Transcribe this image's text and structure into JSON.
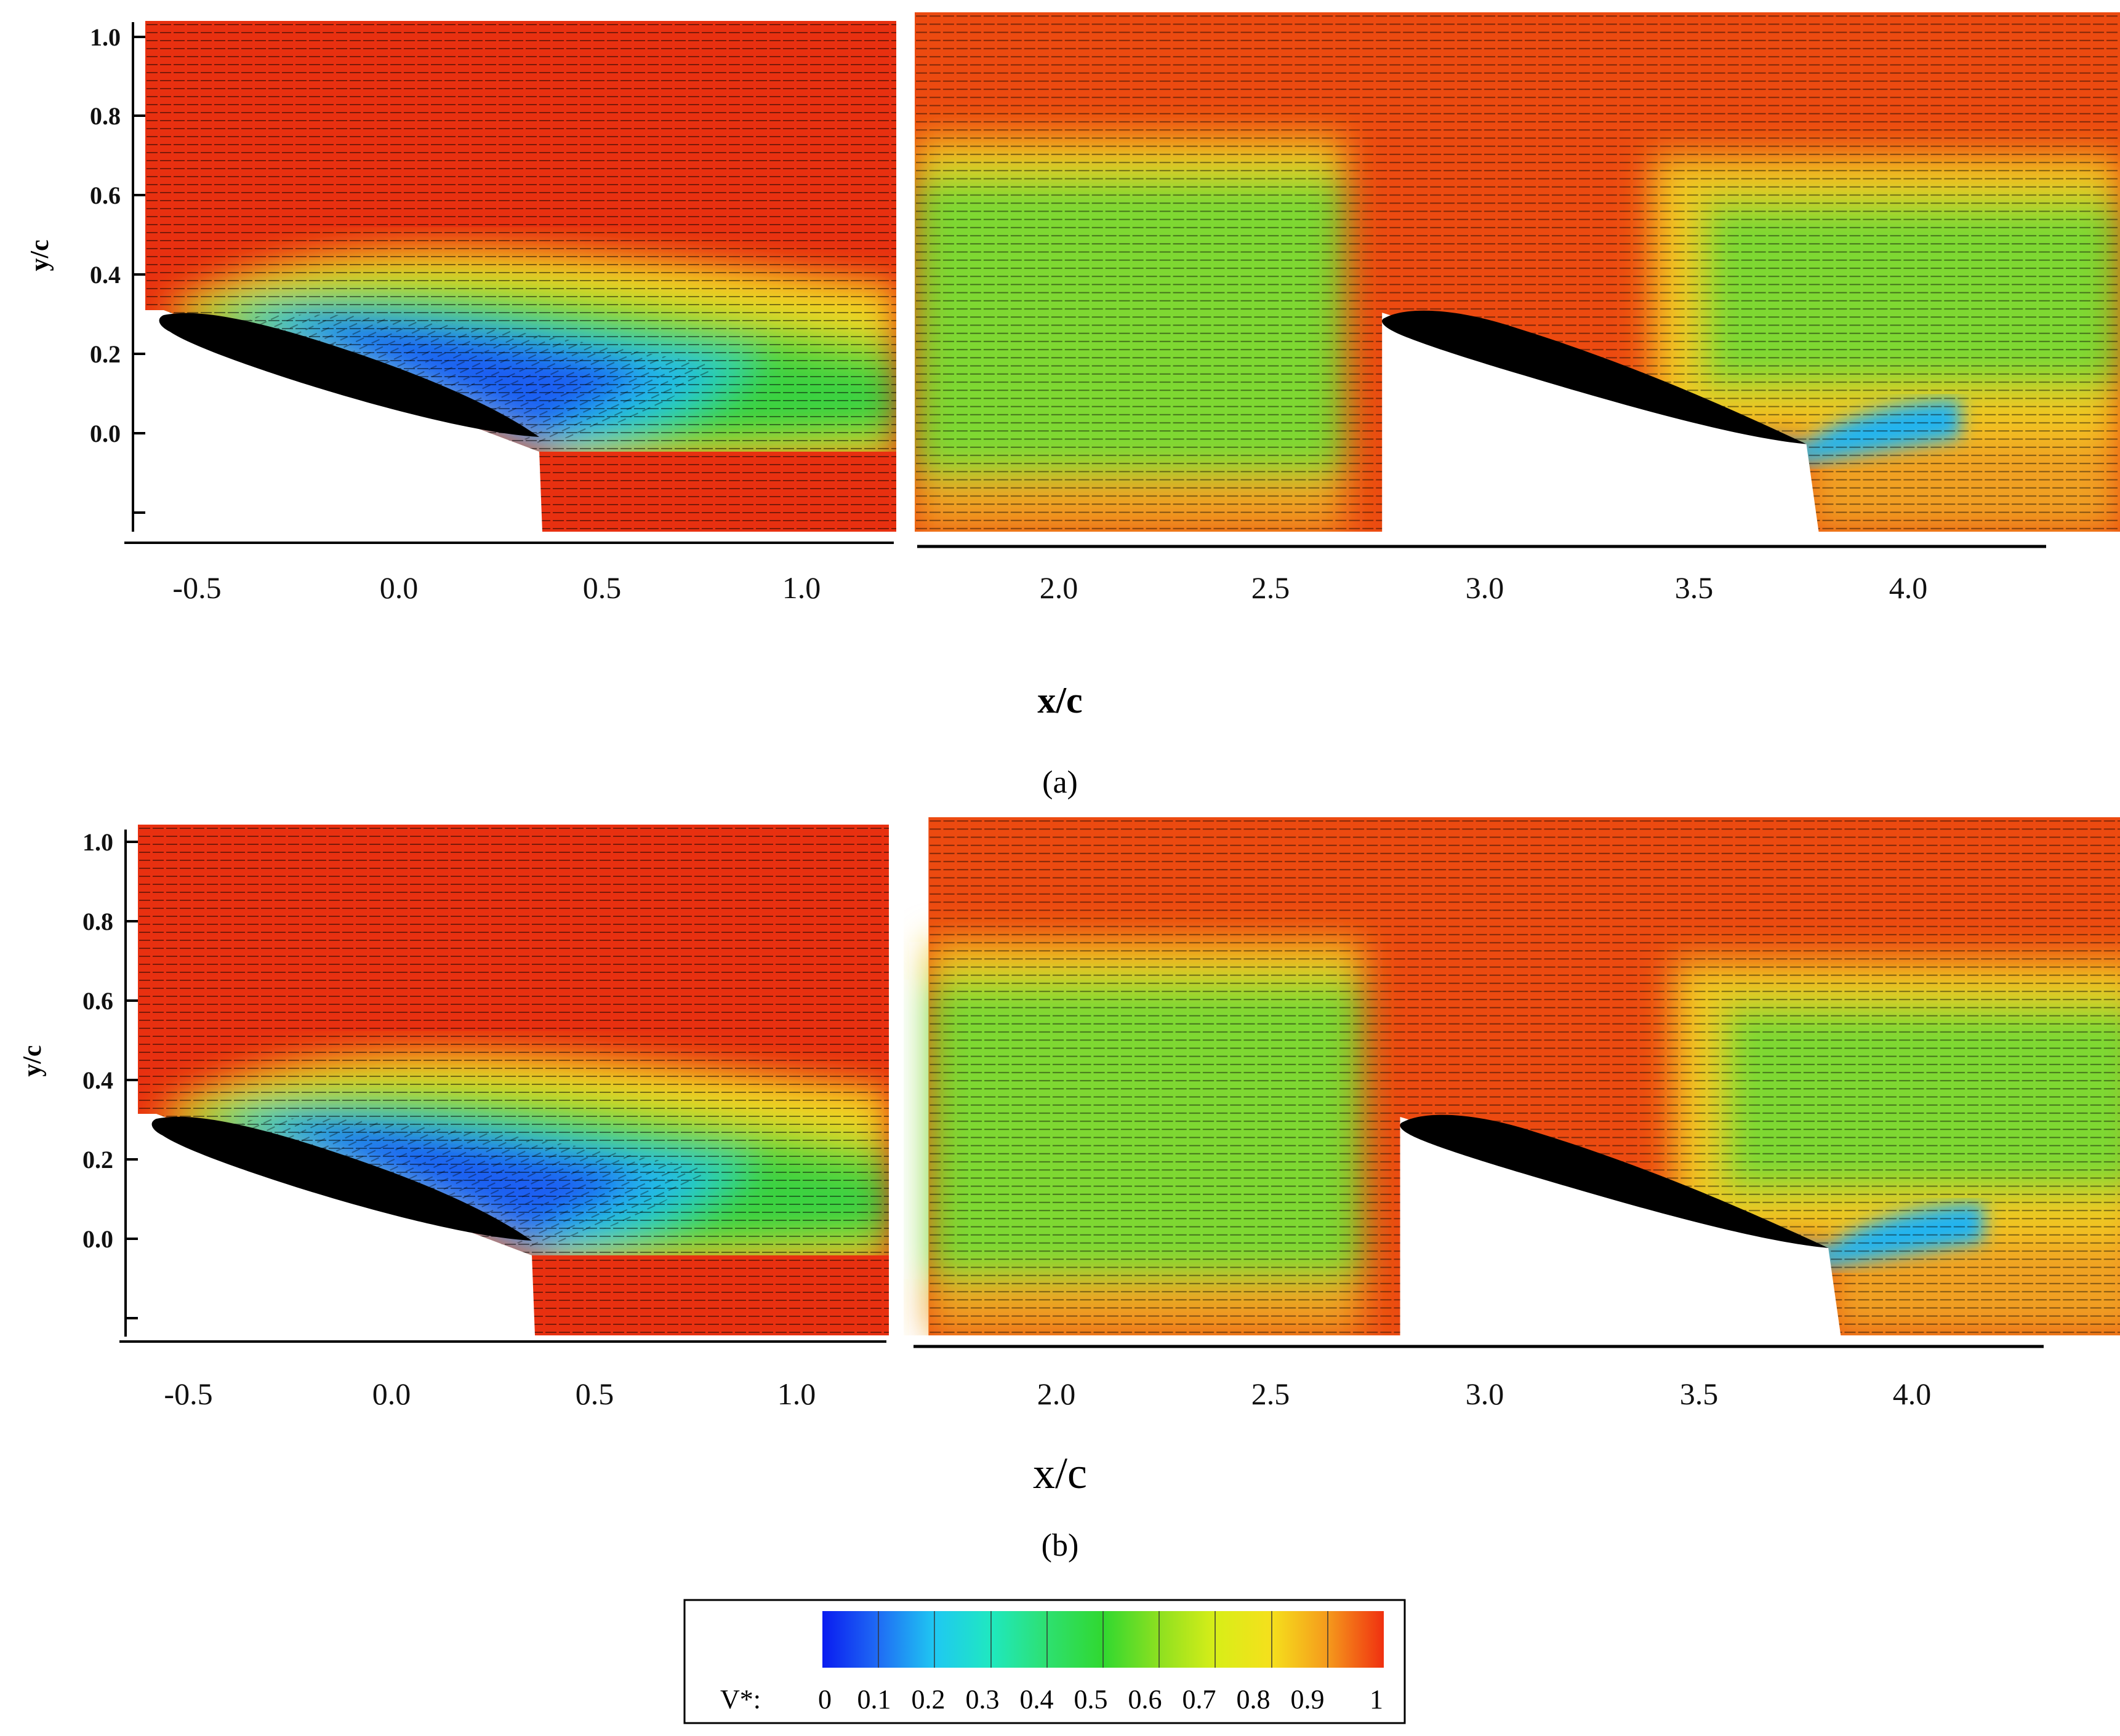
{
  "chart_data": [
    {
      "type": "heatmap",
      "panel_label": "(a)",
      "xlabel": "x/c",
      "ylabel": "y/c",
      "x_ticks": [
        "-0.5",
        "0.0",
        "0.5",
        "1.0",
        "2.0",
        "2.5",
        "3.0",
        "3.5",
        "4.0"
      ],
      "y_ticks": [
        "1.0",
        "0.8",
        "0.6",
        "0.4",
        "0.2",
        "0.0"
      ],
      "left_window": {
        "xlim": [
          -0.65,
          1.2
        ],
        "ylim": [
          -0.25,
          1.03
        ]
      },
      "right_window": {
        "xlim": [
          1.65,
          4.3
        ],
        "ylim": [
          -0.25,
          1.03
        ]
      },
      "airfoils": [
        {
          "leading_edge": [
            -0.58,
            0.31
          ],
          "trailing_edge": [
            0.35,
            0.0
          ]
        },
        {
          "leading_edge": [
            2.75,
            0.31
          ],
          "trailing_edge": [
            3.72,
            0.0
          ]
        }
      ],
      "field_description": "velocity vectors over V* contours",
      "bold_xlabel": true
    },
    {
      "type": "heatmap",
      "panel_label": "(b)",
      "xlabel": "x/c",
      "ylabel": "y/c",
      "x_ticks": [
        "-0.5",
        "0.0",
        "0.5",
        "1.0",
        "2.0",
        "2.5",
        "3.0",
        "3.5",
        "4.0"
      ],
      "y_ticks": [
        "1.0",
        "0.8",
        "0.6",
        "0.4",
        "0.2",
        "0.0"
      ],
      "left_window": {
        "xlim": [
          -0.65,
          1.2
        ],
        "ylim": [
          -0.25,
          1.03
        ]
      },
      "right_window": {
        "xlim": [
          1.65,
          4.3
        ],
        "ylim": [
          -0.25,
          1.03
        ]
      },
      "airfoils": [
        {
          "leading_edge": [
            -0.58,
            0.31
          ],
          "trailing_edge": [
            0.35,
            0.0
          ]
        },
        {
          "leading_edge": [
            2.8,
            0.31
          ],
          "trailing_edge": [
            3.77,
            0.0
          ]
        }
      ],
      "bold_xlabel": false
    }
  ],
  "colorbar": {
    "label": "V*:",
    "ticks": [
      "0",
      "0.1",
      "0.2",
      "0.3",
      "0.4",
      "0.5",
      "0.6",
      "0.7",
      "0.8",
      "0.9",
      "1"
    ],
    "colors": [
      "#0a1cf0",
      "#1f6cf4",
      "#1fc8f2",
      "#1fe8c0",
      "#2ee070",
      "#30d830",
      "#8ee020",
      "#d8ee18",
      "#f5e01c",
      "#f59a1c",
      "#f03010"
    ]
  }
}
